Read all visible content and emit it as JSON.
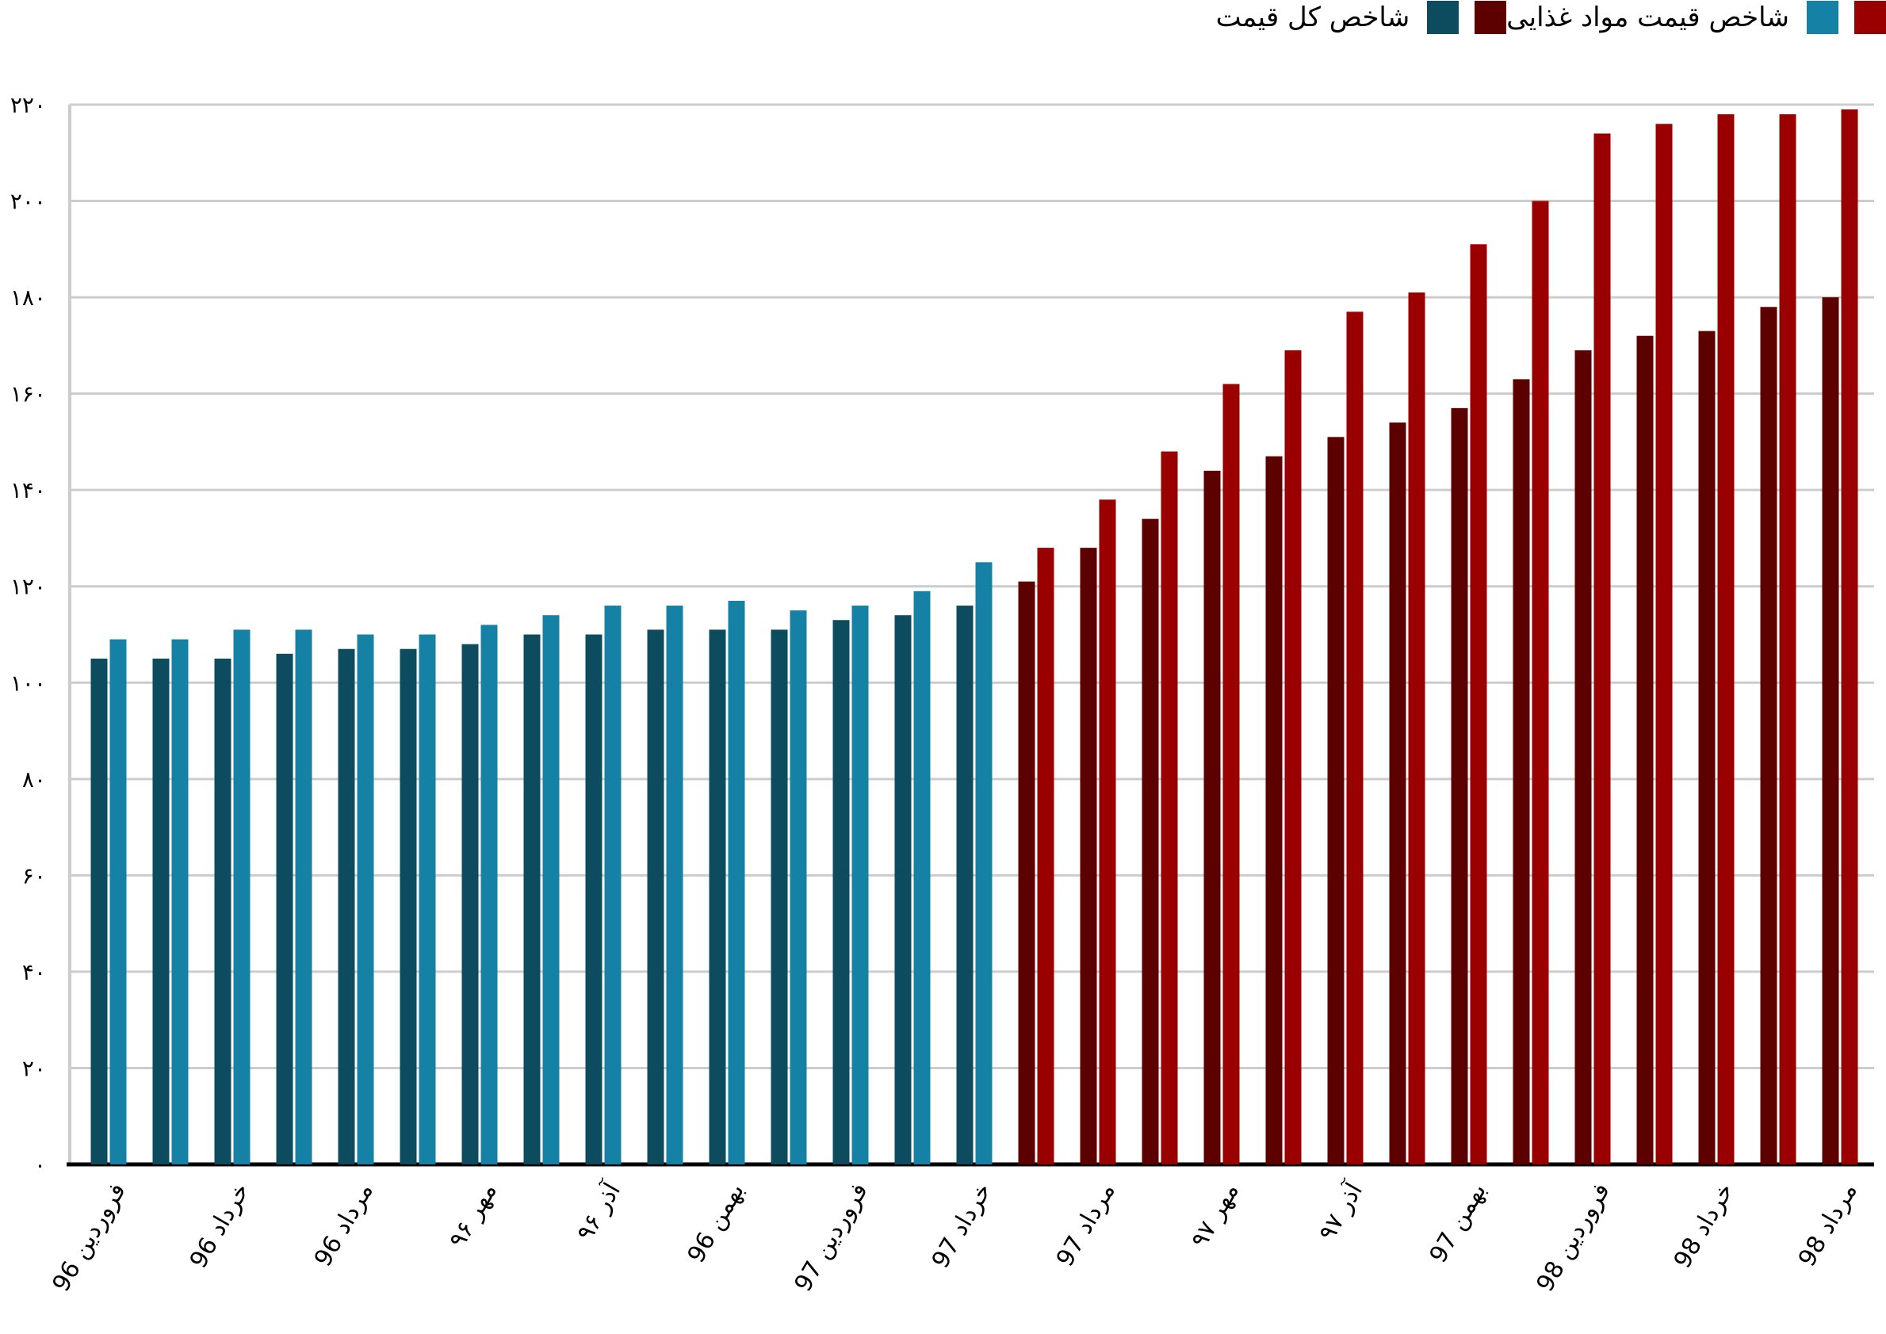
{
  "legend": [
    {
      "label": "شاخص قیمت مواد غذایی",
      "colors": [
        "#9b0000",
        "#1581a5"
      ]
    },
    {
      "label": "شاخص کل قیمت",
      "colors": [
        "#5c0000",
        "#0d4b5e"
      ]
    }
  ],
  "chart_data": {
    "type": "bar",
    "title": "",
    "xlabel": "",
    "ylabel": "",
    "ylim": [
      0,
      220
    ],
    "grid": true,
    "legend_position": "top-right",
    "yticks": [
      0,
      20,
      40,
      60,
      80,
      100,
      120,
      140,
      160,
      180,
      200,
      220
    ],
    "ytick_labels": [
      "۰",
      "۲۰",
      "۴۰",
      "۶۰",
      "۸۰",
      "۱۰۰",
      "۱۲۰",
      "۱۴۰",
      "۱۶۰",
      "۱۸۰",
      "۲۰۰",
      "۲۲۰"
    ],
    "categories_count": 29,
    "xtick_labels": [
      "فروردین 96",
      "خرداد 96",
      "مرداد 96",
      "مهر ۹۶",
      "آذر ۹۶",
      "بهمن 96",
      "فروردین 97",
      "خرداد 97",
      "مرداد 97",
      "مهر ۹۷",
      "آذر ۹۷",
      "بهمن 97",
      "فروردین 98",
      "خرداد 98",
      "مرداد 98"
    ],
    "xtick_every": 2,
    "colors_before": {
      "total": "#0d4b5e",
      "food": "#1581a5"
    },
    "colors_after": {
      "total": "#5c0000",
      "food": "#9b0000"
    },
    "color_switch_index": 15,
    "series": [
      {
        "name": "شاخص کل قیمت",
        "values": [
          105,
          105,
          105,
          106,
          107,
          107,
          108,
          110,
          110,
          111,
          111,
          111,
          113,
          114,
          116,
          121,
          128,
          134,
          144,
          147,
          151,
          154,
          157,
          163,
          169,
          172,
          173,
          178,
          180
        ]
      },
      {
        "name": "شاخص قیمت مواد غذایی",
        "values": [
          109,
          109,
          111,
          111,
          110,
          110,
          112,
          114,
          116,
          116,
          117,
          115,
          116,
          119,
          125,
          128,
          138,
          148,
          162,
          169,
          177,
          181,
          191,
          200,
          214,
          216,
          218,
          218,
          219
        ]
      }
    ]
  }
}
